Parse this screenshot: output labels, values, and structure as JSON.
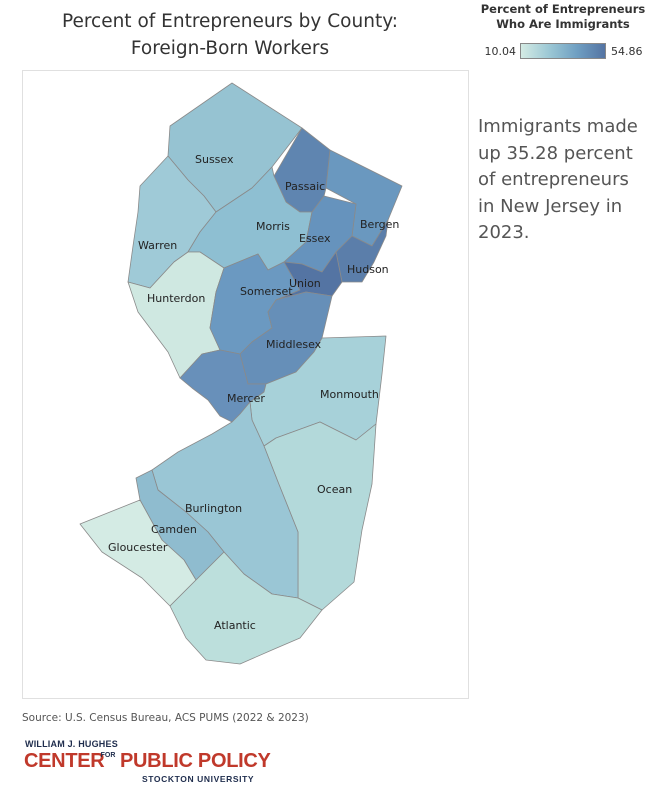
{
  "title": {
    "line1": "Percent of Entrepreneurs by County:",
    "line2": "Foreign-Born Workers"
  },
  "legend": {
    "title_line1": "Percent of Entrepreneurs",
    "title_line2": "Who Are Immigrants",
    "min": "10.04",
    "max": "54.86",
    "min_value": 10.04,
    "max_value": 54.86,
    "color_low": "#d4ebe4",
    "color_high": "#5474a3"
  },
  "callout": {
    "text": "Immigrants made up 35.28 percent of entrepreneurs in New Jersey in 2023."
  },
  "source": "Source: U.S. Census Bureau, ACS PUMS (2022 & 2023)",
  "logo": {
    "top": "WILLIAM J. HUGHES",
    "center": "CENTER",
    "for_line1": "FOR",
    "policy": "PUBLIC POLICY",
    "bottom": "STOCKTON UNIVERSITY"
  },
  "counties": [
    {
      "id": "sussex",
      "name": "Sussex",
      "color": "#96c3d2"
    },
    {
      "id": "passaic",
      "name": "Passaic",
      "color": "#5f85b0"
    },
    {
      "id": "bergen",
      "name": "Bergen",
      "color": "#6a98bf"
    },
    {
      "id": "warren",
      "name": "Warren",
      "color": "#9fcad7"
    },
    {
      "id": "morris",
      "name": "Morris",
      "color": "#8ebfd2"
    },
    {
      "id": "essex",
      "name": "Essex",
      "color": "#6693bd"
    },
    {
      "id": "hudson",
      "name": "Hudson",
      "color": "#5b7eaa"
    },
    {
      "id": "hunterdon",
      "name": "Hunterdon",
      "color": "#cfe8e1"
    },
    {
      "id": "somerset",
      "name": "Somerset",
      "color": "#6b99c1"
    },
    {
      "id": "union",
      "name": "Union",
      "color": "#5474a3"
    },
    {
      "id": "middlesex",
      "name": "Middlesex",
      "color": "#668fb8"
    },
    {
      "id": "mercer",
      "name": "Mercer",
      "color": "#6890ba"
    },
    {
      "id": "monmouth",
      "name": "Monmouth",
      "color": "#a7d1d9"
    },
    {
      "id": "ocean",
      "name": "Ocean",
      "color": "#b3d9da"
    },
    {
      "id": "burlington",
      "name": "Burlington",
      "color": "#9ac6d5"
    },
    {
      "id": "camden",
      "name": "Camden",
      "color": "#8fbccf"
    },
    {
      "id": "gloucester",
      "name": "Gloucester",
      "color": "#d4ebe4"
    },
    {
      "id": "atlantic",
      "name": "Atlantic",
      "color": "#bcdfdc"
    }
  ]
}
